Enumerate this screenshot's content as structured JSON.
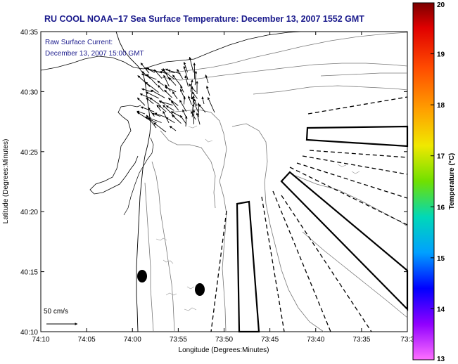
{
  "title": "RU COOL  NOAA−17  Sea Surface Temperature:  December 13, 2007 1552 GMT",
  "annotation": {
    "line1": "Raw Surface Current:",
    "line2": "December 13, 2007 15:00 GMT"
  },
  "scale": {
    "label": "50 cm/s"
  },
  "axes": {
    "xlabel": "Longitude (Degrees:Minutes)",
    "ylabel": "Latitude (Degrees:Minutes)",
    "x_ticks": [
      "74:10",
      "74:05",
      "74:00",
      "73:55",
      "73:50",
      "73:45",
      "73:40",
      "73:35",
      "73:3"
    ],
    "y_ticks": [
      "40:35",
      "40:30",
      "40:25",
      "40:20",
      "40:15",
      "40:10"
    ]
  },
  "colorbar": {
    "label": "Temperature (°C)",
    "ticks": [
      "20",
      "19",
      "18",
      "17",
      "16",
      "15",
      "14",
      "13"
    ]
  }
}
